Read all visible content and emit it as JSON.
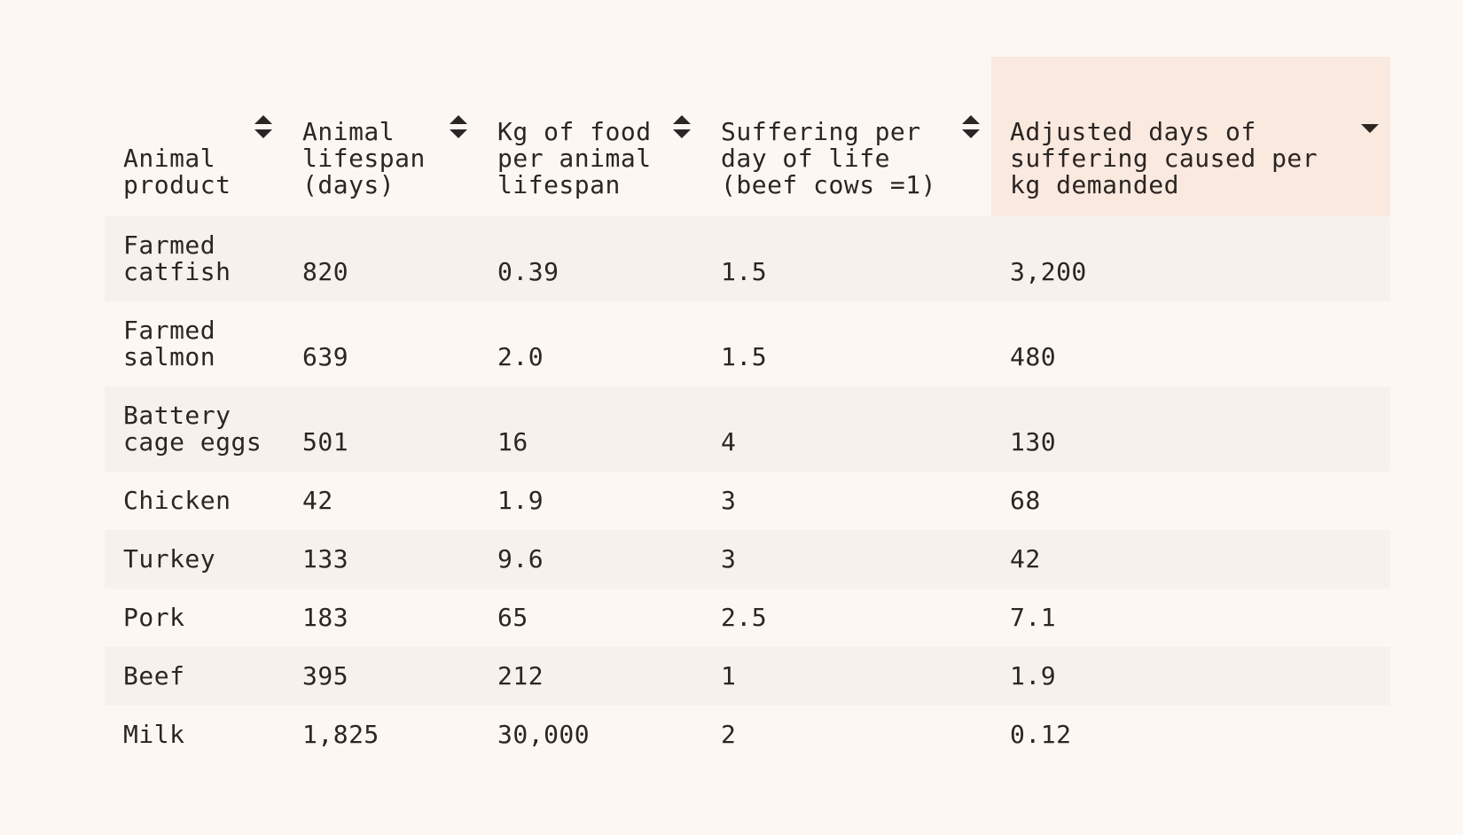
{
  "table": {
    "columns": [
      {
        "label": "Animal product",
        "sort": "both"
      },
      {
        "label": "Animal lifespan (days)",
        "sort": "both"
      },
      {
        "label": "Kg of food per animal lifespan",
        "sort": "both"
      },
      {
        "label": "Suffering per day of life (beef cows =1)",
        "sort": "both"
      },
      {
        "label": "Adjusted days of suffering caused per kg demanded",
        "sort": "desc"
      }
    ],
    "rows": [
      [
        "Farmed catfish",
        "820",
        "0.39",
        "1.5",
        "3,200"
      ],
      [
        "Farmed salmon",
        "639",
        "2.0",
        "1.5",
        "480"
      ],
      [
        "Battery cage eggs",
        "501",
        "16",
        "4",
        "130"
      ],
      [
        "Chicken",
        "42",
        "1.9",
        "3",
        "68"
      ],
      [
        "Turkey",
        "133",
        "9.6",
        "3",
        "42"
      ],
      [
        "Pork",
        "183",
        "65",
        "2.5",
        "7.1"
      ],
      [
        "Beef",
        "395",
        "212",
        "1",
        "1.9"
      ],
      [
        "Milk",
        "1,825",
        "30,000",
        "2",
        "0.12"
      ]
    ],
    "colors": {
      "active_header_bg": "#f9e9df",
      "stripe_bg": "#f7f1ee",
      "page_bg": "#fdf7f3",
      "text": "#2b2523"
    },
    "sort_icons": {
      "both": "sort-up-down-icon",
      "desc": "sort-descending-icon"
    }
  }
}
